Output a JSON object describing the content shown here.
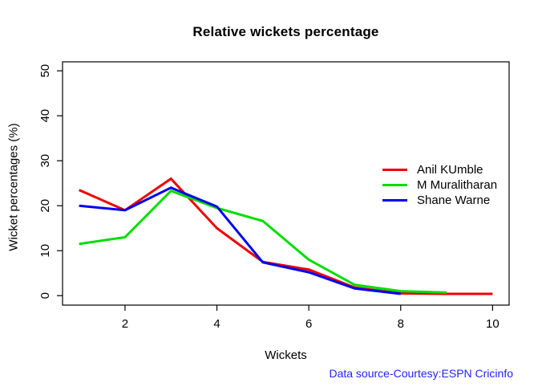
{
  "chart_data": {
    "type": "line",
    "title": "Relative wickets percentage",
    "xlabel": "Wickets",
    "ylabel": "Wicket percentages (%)",
    "caption": "Data source-Courtesy:ESPN Cricinfo",
    "caption_color": "#2222ff",
    "axis_color": "#000000",
    "x": [
      1,
      2,
      3,
      4,
      5,
      6,
      7,
      8,
      9,
      10
    ],
    "x_ticks": [
      2,
      4,
      6,
      8,
      10
    ],
    "y_ticks": [
      0,
      10,
      20,
      30,
      40,
      50
    ],
    "xlim": [
      0.64,
      10.36
    ],
    "ylim": [
      -2.1,
      52.0
    ],
    "grid": false,
    "legend_position": "right-middle",
    "series": [
      {
        "name": "Anil KUmble",
        "color": "#ee0000",
        "values": [
          23.5,
          19,
          26,
          15,
          7.5,
          5.8,
          1.8,
          0.5,
          0.4,
          0.4
        ]
      },
      {
        "name": "M Muralitharan",
        "color": "#00dd00",
        "values": [
          11.5,
          13,
          23.3,
          19.5,
          16.6,
          8,
          2.4,
          1,
          0.7
        ]
      },
      {
        "name": "Shane Warne",
        "color": "#0000ee",
        "values": [
          20,
          19,
          24,
          19.8,
          7.4,
          5.2,
          1.6,
          0.4
        ]
      }
    ]
  }
}
